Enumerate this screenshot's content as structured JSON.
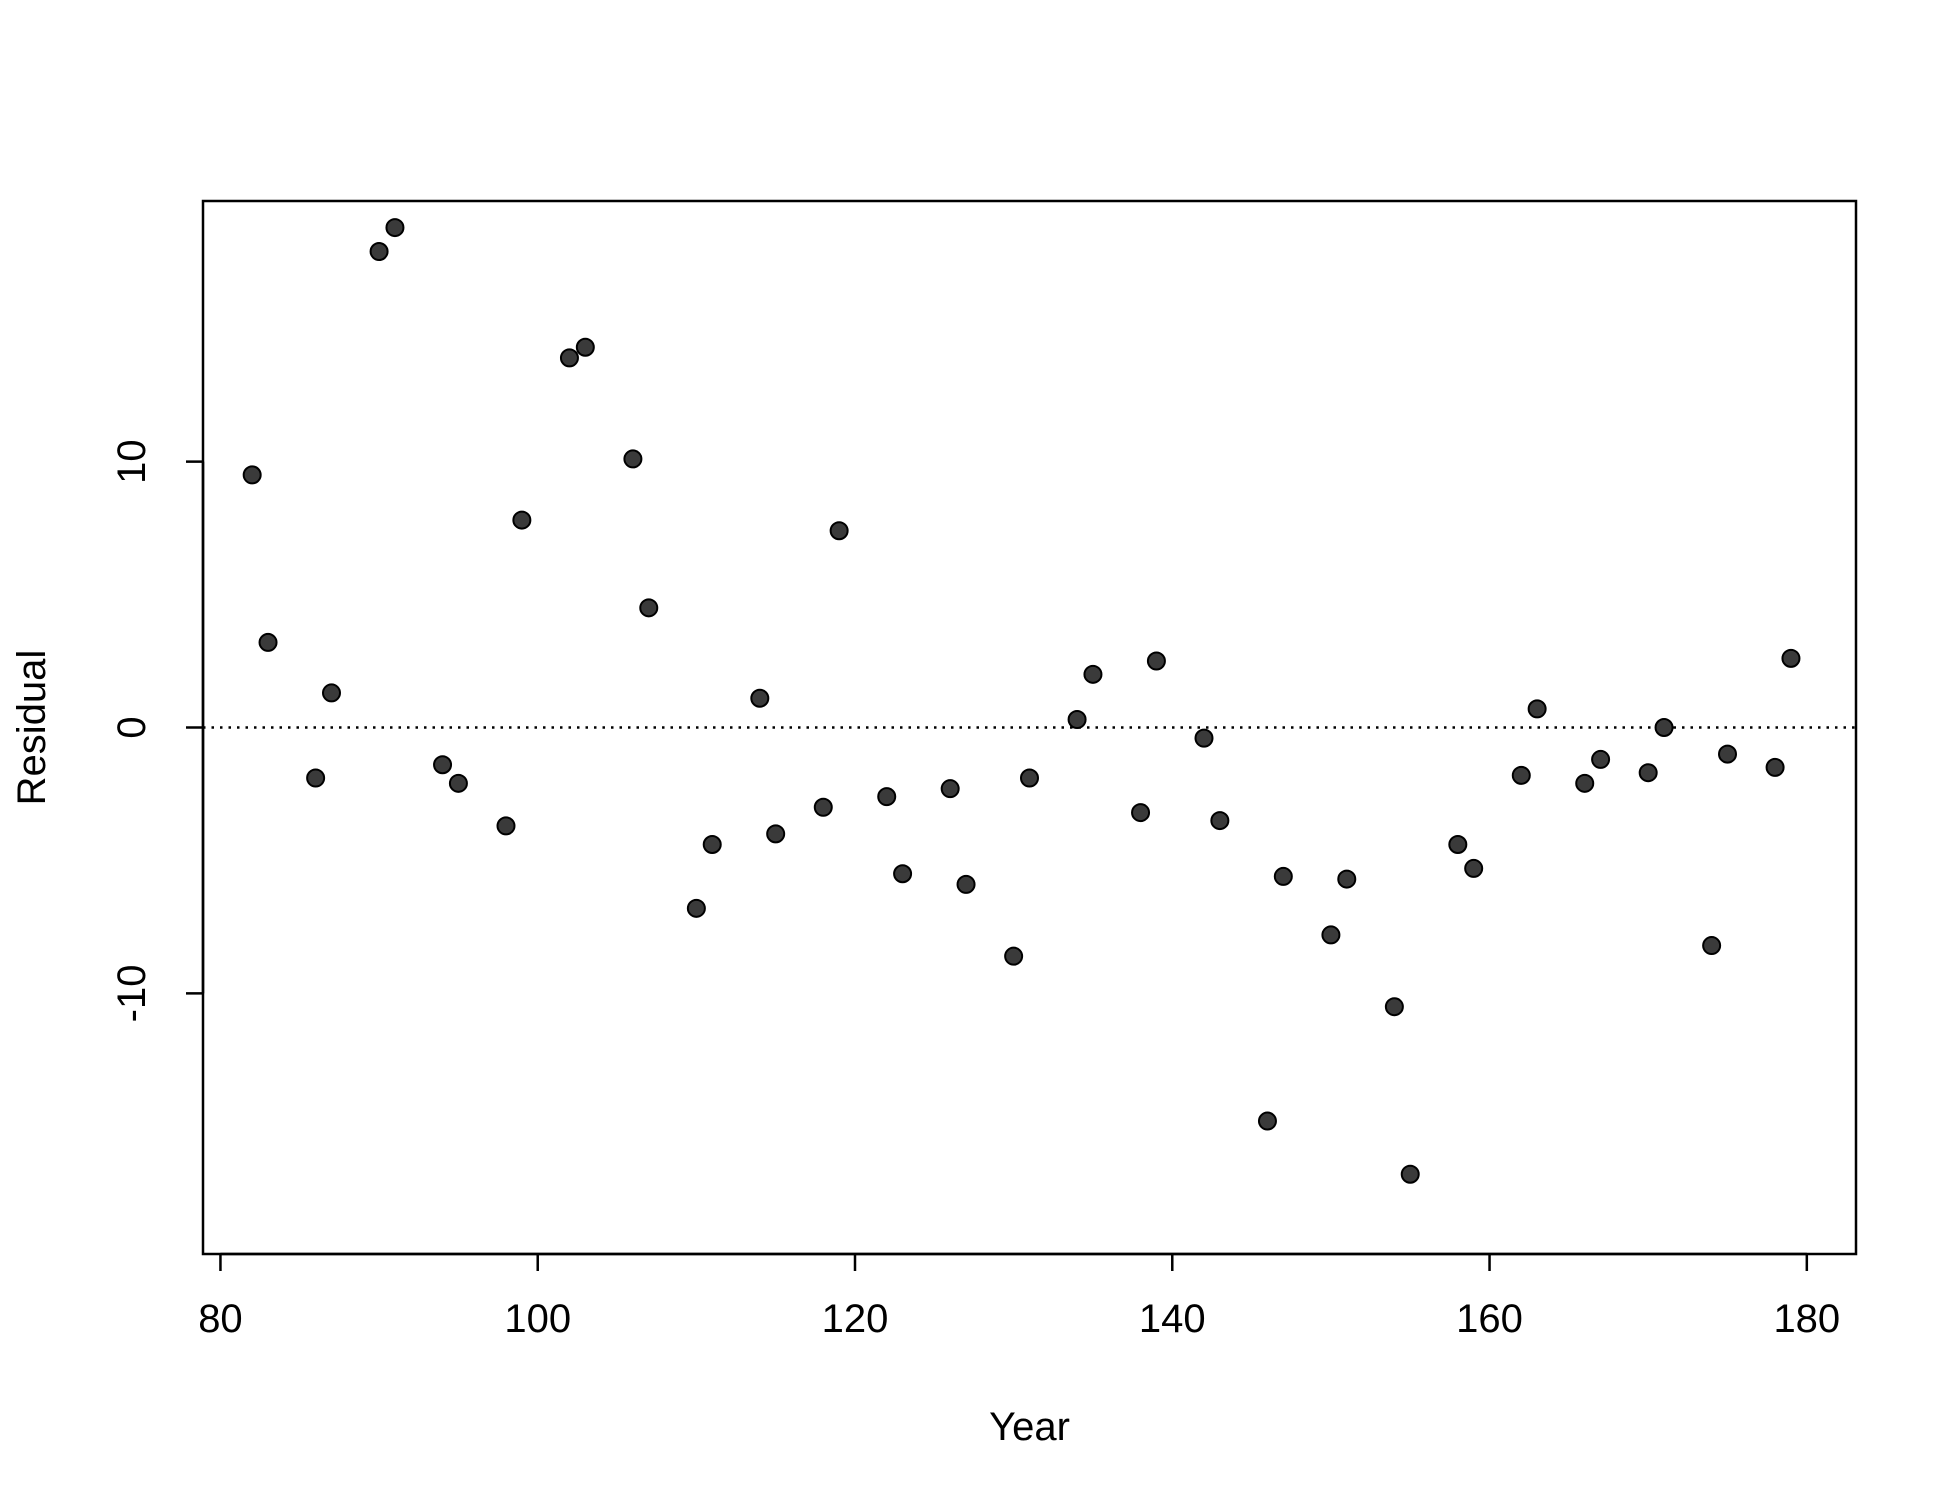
{
  "chart_data": {
    "type": "scatter",
    "title": "",
    "xlabel": "Year",
    "ylabel": "Residual",
    "xlim": [
      78.9,
      183.1
    ],
    "ylim": [
      -19.8,
      19.8
    ],
    "x_ticks": [
      80,
      100,
      120,
      140,
      160,
      180
    ],
    "x_tick_labels": [
      "80",
      "100",
      "120",
      "140",
      "160",
      "180"
    ],
    "y_ticks": [
      -10,
      0,
      10
    ],
    "y_tick_labels": [
      "-10",
      "0",
      "10"
    ],
    "reference_line": {
      "y": 0,
      "style": "dotted"
    },
    "grid": false,
    "legend": "none",
    "point_color": "#3a3a3a",
    "point_stroke": "#000000",
    "points": [
      {
        "x": 82,
        "y": 9.5
      },
      {
        "x": 83,
        "y": 3.2
      },
      {
        "x": 86,
        "y": -1.9
      },
      {
        "x": 87,
        "y": 1.3
      },
      {
        "x": 90,
        "y": 17.9
      },
      {
        "x": 91,
        "y": 18.8
      },
      {
        "x": 94,
        "y": -1.4
      },
      {
        "x": 95,
        "y": -2.1
      },
      {
        "x": 98,
        "y": -3.7
      },
      {
        "x": 99,
        "y": 7.8
      },
      {
        "x": 102,
        "y": 13.9
      },
      {
        "x": 103,
        "y": 14.3
      },
      {
        "x": 106,
        "y": 10.1
      },
      {
        "x": 107,
        "y": 4.5
      },
      {
        "x": 110,
        "y": -6.8
      },
      {
        "x": 111,
        "y": -4.4
      },
      {
        "x": 114,
        "y": 1.1
      },
      {
        "x": 115,
        "y": -4.0
      },
      {
        "x": 118,
        "y": -3.0
      },
      {
        "x": 119,
        "y": 7.4
      },
      {
        "x": 122,
        "y": -2.6
      },
      {
        "x": 123,
        "y": -5.5
      },
      {
        "x": 126,
        "y": -2.3
      },
      {
        "x": 127,
        "y": -5.9
      },
      {
        "x": 130,
        "y": -8.6
      },
      {
        "x": 131,
        "y": -1.9
      },
      {
        "x": 134,
        "y": 0.3
      },
      {
        "x": 135,
        "y": 2.0
      },
      {
        "x": 138,
        "y": -3.2
      },
      {
        "x": 139,
        "y": 2.5
      },
      {
        "x": 142,
        "y": -0.4
      },
      {
        "x": 143,
        "y": -3.5
      },
      {
        "x": 146,
        "y": -14.8
      },
      {
        "x": 147,
        "y": -5.6
      },
      {
        "x": 150,
        "y": -7.8
      },
      {
        "x": 151,
        "y": -5.7
      },
      {
        "x": 154,
        "y": -10.5
      },
      {
        "x": 155,
        "y": -16.8
      },
      {
        "x": 158,
        "y": -4.4
      },
      {
        "x": 159,
        "y": -5.3
      },
      {
        "x": 162,
        "y": -1.8
      },
      {
        "x": 163,
        "y": 0.7
      },
      {
        "x": 166,
        "y": -2.1
      },
      {
        "x": 167,
        "y": -1.2
      },
      {
        "x": 170,
        "y": -1.7
      },
      {
        "x": 171,
        "y": 0.0
      },
      {
        "x": 174,
        "y": -8.2
      },
      {
        "x": 175,
        "y": -1.0
      },
      {
        "x": 178,
        "y": -1.5
      },
      {
        "x": 179,
        "y": 2.6
      }
    ]
  }
}
